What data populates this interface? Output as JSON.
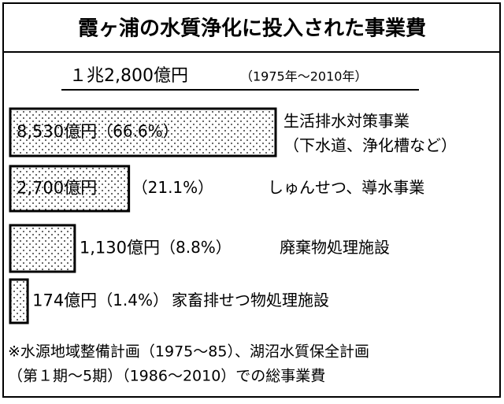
{
  "chart_data": {
    "type": "bar",
    "title": "霞ヶ浦の水質浄化に投入された事業費",
    "subtitle": "１兆2,800億円",
    "period": "（1975年～2010年）",
    "categories": [
      [
        "生活排水対策事業",
        "（下水道、浄化槽など）"
      ],
      [
        "しゅんせつ、導水事業"
      ],
      [
        "廃棄物処理施設"
      ],
      [
        "家畜排せつ物処理施設"
      ]
    ],
    "values": [
      8530,
      2700,
      1130,
      174
    ],
    "value_labels": [
      "8,530億円",
      "2,700億円",
      "1,130億円",
      "174億円"
    ],
    "share_labels": [
      "（66.6%）",
      "（21.1%）",
      "（8.8%）",
      "（1.4%）"
    ],
    "color": "#000000",
    "notes": [
      "※水源地域整備計画（1975～85）、湖沼水質保全計画",
      "（第１期～5期）（1986～2010）での総事業費"
    ]
  }
}
